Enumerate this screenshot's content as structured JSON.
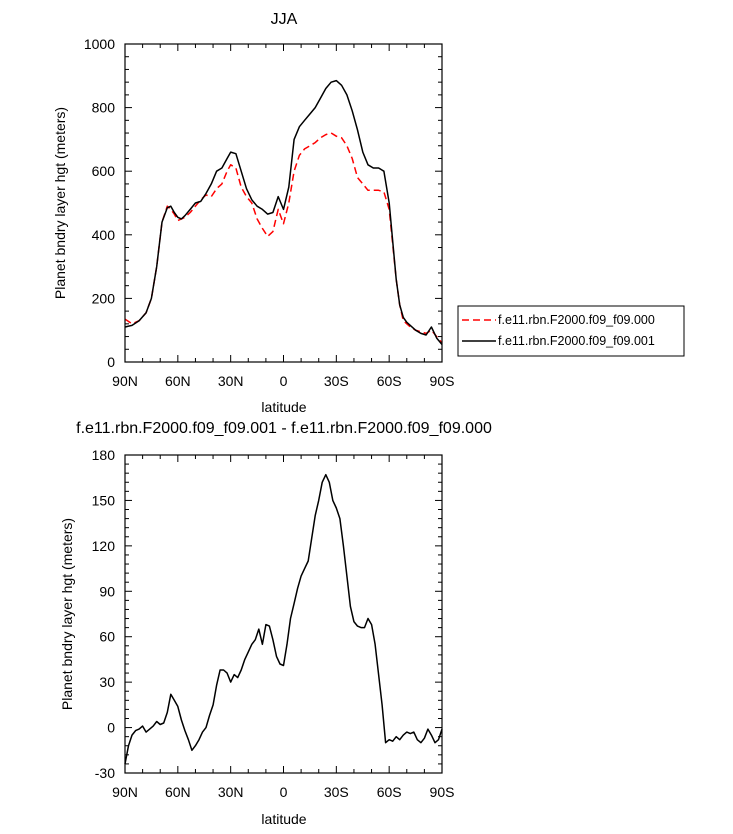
{
  "chart_data": [
    {
      "type": "line",
      "title": "JJA",
      "xlabel": "latitude",
      "ylabel": "Planet bndry layer hgt (meters)",
      "x_ticks": [
        -90,
        -60,
        -30,
        0,
        30,
        60,
        90
      ],
      "x_tick_labels": [
        "90N",
        "60N",
        "30N",
        "0",
        "30S",
        "60S",
        "90S"
      ],
      "xlim": [
        -90,
        90
      ],
      "ylim": [
        0,
        1000
      ],
      "y_ticks": [
        0,
        200,
        400,
        600,
        800,
        1000
      ],
      "y_tick_labels": [
        "0",
        "200",
        "400",
        "600",
        "800",
        "1000"
      ],
      "grid": false,
      "legend_position": "right, outside plot",
      "series": [
        {
          "name": "f.e11.rbn.F2000.f09_f09.000",
          "color": "#ff0000",
          "style": "dashed",
          "x": [
            -90,
            -86,
            -82,
            -78,
            -75,
            -72,
            -69,
            -66,
            -64,
            -62,
            -60,
            -58,
            -56,
            -53,
            -50,
            -47,
            -44,
            -41,
            -38,
            -35,
            -32,
            -30,
            -27,
            -24,
            -21,
            -18,
            -15,
            -12,
            -9,
            -6,
            -3,
            0,
            3,
            6,
            9,
            12,
            15,
            18,
            21,
            24,
            27,
            30,
            33,
            36,
            39,
            42,
            45,
            48,
            51,
            54,
            57,
            60,
            62,
            64,
            66,
            68,
            70,
            72,
            75,
            78,
            81,
            84,
            87,
            90
          ],
          "values": [
            135,
            120,
            130,
            155,
            200,
            300,
            440,
            490,
            480,
            465,
            445,
            450,
            455,
            470,
            490,
            510,
            525,
            520,
            545,
            560,
            600,
            620,
            610,
            550,
            520,
            500,
            450,
            420,
            395,
            410,
            480,
            435,
            500,
            600,
            650,
            670,
            680,
            690,
            705,
            715,
            720,
            710,
            705,
            680,
            640,
            580,
            560,
            540,
            540,
            540,
            535,
            480,
            370,
            260,
            180,
            130,
            120,
            110,
            100,
            95,
            90,
            100,
            80,
            60
          ]
        },
        {
          "name": "f.e11.rbn.F2000.f09_f09.001",
          "color": "#000000",
          "style": "solid",
          "x": [
            -90,
            -86,
            -82,
            -78,
            -75,
            -72,
            -69,
            -66,
            -64,
            -62,
            -60,
            -58,
            -56,
            -53,
            -50,
            -47,
            -44,
            -41,
            -38,
            -35,
            -32,
            -30,
            -27,
            -24,
            -21,
            -18,
            -15,
            -12,
            -9,
            -6,
            -3,
            0,
            3,
            6,
            9,
            12,
            15,
            18,
            21,
            24,
            27,
            30,
            33,
            36,
            39,
            42,
            45,
            48,
            51,
            54,
            57,
            60,
            62,
            64,
            66,
            68,
            70,
            72,
            75,
            78,
            81,
            84,
            87,
            90
          ],
          "values": [
            110,
            115,
            130,
            155,
            200,
            300,
            440,
            485,
            490,
            470,
            455,
            450,
            460,
            480,
            500,
            505,
            530,
            560,
            600,
            610,
            640,
            660,
            655,
            600,
            545,
            510,
            490,
            480,
            465,
            470,
            520,
            480,
            550,
            700,
            740,
            760,
            780,
            800,
            830,
            860,
            880,
            885,
            870,
            840,
            790,
            730,
            660,
            620,
            610,
            610,
            600,
            500,
            380,
            260,
            180,
            140,
            125,
            115,
            100,
            90,
            85,
            110,
            75,
            55
          ]
        }
      ]
    },
    {
      "type": "line",
      "title": "f.e11.rbn.F2000.f09_f09.001 - f.e11.rbn.F2000.f09_f09.000",
      "xlabel": "latitude",
      "ylabel": "Planet bndry layer hgt (meters)",
      "x_ticks": [
        -90,
        -60,
        -30,
        0,
        30,
        60,
        90
      ],
      "x_tick_labels": [
        "90N",
        "60N",
        "30N",
        "0",
        "30S",
        "60S",
        "90S"
      ],
      "xlim": [
        -90,
        90
      ],
      "ylim": [
        -30,
        180
      ],
      "y_ticks": [
        -30,
        0,
        30,
        60,
        90,
        120,
        150,
        180
      ],
      "y_tick_labels": [
        "-30",
        "0",
        "30",
        "60",
        "90",
        "120",
        "150",
        "180"
      ],
      "grid": false,
      "series": [
        {
          "color": "#000000",
          "style": "solid",
          "x": [
            -90,
            -88,
            -86,
            -84,
            -82,
            -80,
            -78,
            -76,
            -74,
            -72,
            -70,
            -68,
            -66,
            -64,
            -62,
            -60,
            -58,
            -56,
            -54,
            -52,
            -50,
            -48,
            -46,
            -44,
            -42,
            -40,
            -38,
            -36,
            -34,
            -32,
            -30,
            -28,
            -26,
            -24,
            -22,
            -20,
            -18,
            -16,
            -14,
            -12,
            -10,
            -8,
            -6,
            -4,
            -2,
            0,
            2,
            4,
            6,
            8,
            10,
            12,
            14,
            16,
            18,
            20,
            22,
            24,
            26,
            28,
            30,
            32,
            34,
            36,
            38,
            40,
            42,
            44,
            46,
            48,
            50,
            52,
            54,
            56,
            58,
            60,
            62,
            64,
            66,
            68,
            70,
            72,
            74,
            76,
            78,
            80,
            82,
            84,
            86,
            88,
            90
          ],
          "values": [
            -24,
            -12,
            -5,
            -2,
            -1,
            1,
            -3,
            -1,
            1,
            4,
            2,
            3,
            10,
            22,
            18,
            14,
            5,
            -2,
            -8,
            -15,
            -12,
            -8,
            -3,
            0,
            8,
            15,
            28,
            38,
            38,
            36,
            30,
            35,
            33,
            38,
            45,
            50,
            55,
            58,
            65,
            55,
            68,
            67,
            58,
            47,
            42,
            41,
            55,
            72,
            82,
            92,
            100,
            105,
            110,
            125,
            140,
            150,
            162,
            167,
            162,
            150,
            145,
            138,
            120,
            100,
            80,
            70,
            67,
            66,
            66,
            72,
            68,
            55,
            35,
            15,
            -10,
            -8,
            -9,
            -6,
            -8,
            -5,
            -3,
            -4,
            -3,
            -8,
            -10,
            -7,
            -1,
            -5,
            -10,
            -8,
            -1
          ]
        }
      ]
    }
  ]
}
